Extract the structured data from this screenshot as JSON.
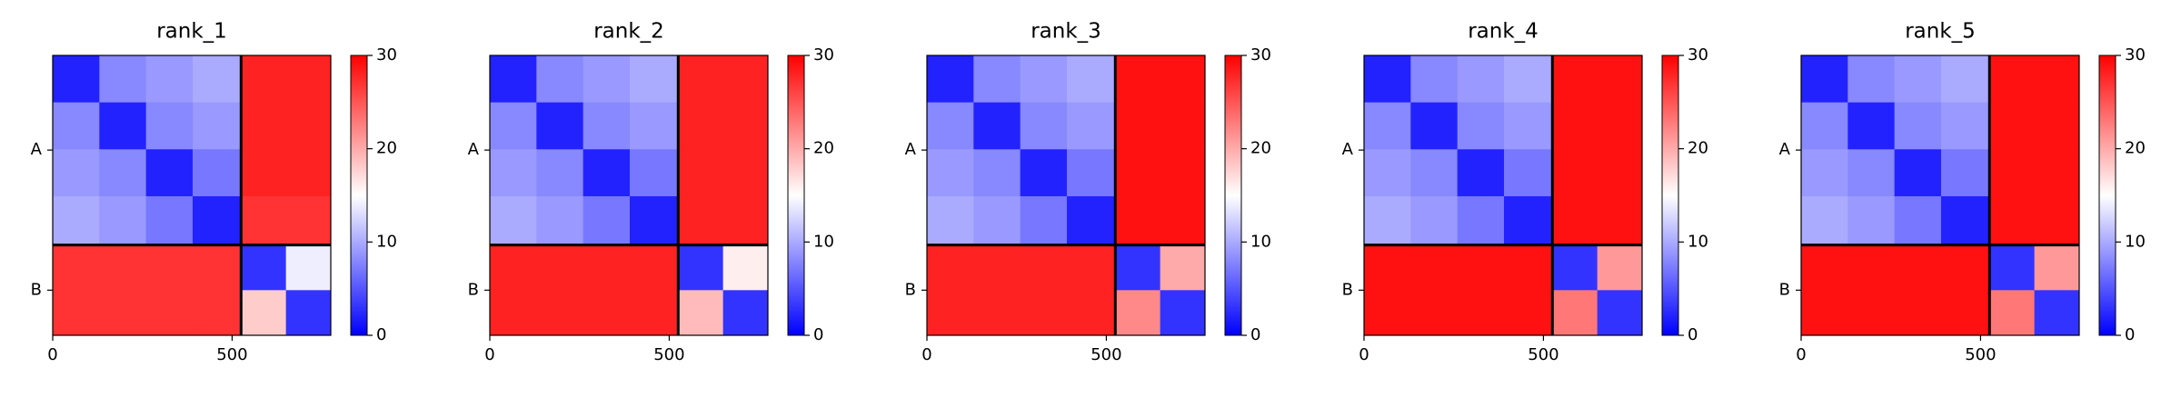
{
  "chart_data": [
    {
      "type": "heatmap",
      "title": "rank_1",
      "cmap": "bwr",
      "bins": [
        0,
        130,
        260,
        390,
        525,
        650,
        775
      ],
      "values": [
        [
          2,
          8,
          9,
          10,
          28,
          28
        ],
        [
          8,
          2,
          8,
          9,
          28,
          28
        ],
        [
          9,
          8,
          2,
          7,
          28,
          28
        ],
        [
          10,
          9,
          7,
          2,
          27,
          27
        ],
        [
          27,
          27,
          27,
          27,
          3,
          14
        ],
        [
          27,
          27,
          27,
          27,
          18,
          3
        ]
      ],
      "xlim": [
        0,
        775
      ],
      "xticks": [
        0,
        500
      ],
      "ylim": [
        0,
        775
      ],
      "yticks": [
        {
          "value": 262,
          "label": "A"
        },
        {
          "value": 650,
          "label": "B"
        }
      ],
      "chain_breaks": [
        525
      ],
      "clim": [
        0,
        30
      ],
      "cticks": [
        0,
        10,
        20,
        30
      ]
    },
    {
      "type": "heatmap",
      "title": "rank_2",
      "cmap": "bwr",
      "bins": [
        0,
        130,
        260,
        390,
        525,
        650,
        775
      ],
      "values": [
        [
          2,
          8,
          9,
          10,
          28,
          28
        ],
        [
          8,
          2,
          8,
          9,
          28,
          28
        ],
        [
          9,
          8,
          2,
          7,
          28,
          28
        ],
        [
          10,
          9,
          7,
          2,
          28,
          28
        ],
        [
          28,
          28,
          28,
          28,
          3,
          16
        ],
        [
          28,
          28,
          28,
          28,
          19,
          3
        ]
      ],
      "xlim": [
        0,
        775
      ],
      "xticks": [
        0,
        500
      ],
      "ylim": [
        0,
        775
      ],
      "yticks": [
        {
          "value": 262,
          "label": "A"
        },
        {
          "value": 650,
          "label": "B"
        }
      ],
      "chain_breaks": [
        525
      ],
      "clim": [
        0,
        30
      ],
      "cticks": [
        0,
        10,
        20,
        30
      ]
    },
    {
      "type": "heatmap",
      "title": "rank_3",
      "cmap": "bwr",
      "bins": [
        0,
        130,
        260,
        390,
        525,
        650,
        775
      ],
      "values": [
        [
          2,
          8,
          9,
          10,
          29,
          29
        ],
        [
          8,
          2,
          8,
          9,
          29,
          29
        ],
        [
          9,
          8,
          2,
          7,
          29,
          29
        ],
        [
          10,
          9,
          7,
          2,
          29,
          29
        ],
        [
          28,
          28,
          28,
          28,
          3,
          20
        ],
        [
          28,
          28,
          28,
          28,
          22,
          3
        ]
      ],
      "xlim": [
        0,
        775
      ],
      "xticks": [
        0,
        500
      ],
      "ylim": [
        0,
        775
      ],
      "yticks": [
        {
          "value": 262,
          "label": "A"
        },
        {
          "value": 650,
          "label": "B"
        }
      ],
      "chain_breaks": [
        525
      ],
      "clim": [
        0,
        30
      ],
      "cticks": [
        0,
        10,
        20,
        30
      ]
    },
    {
      "type": "heatmap",
      "title": "rank_4",
      "cmap": "bwr",
      "bins": [
        0,
        130,
        260,
        390,
        525,
        650,
        775
      ],
      "values": [
        [
          2,
          8,
          9,
          10,
          29,
          29
        ],
        [
          8,
          2,
          8,
          9,
          29,
          29
        ],
        [
          9,
          8,
          2,
          7,
          29,
          29
        ],
        [
          10,
          9,
          7,
          2,
          29,
          29
        ],
        [
          29,
          29,
          29,
          29,
          3,
          21
        ],
        [
          29,
          29,
          29,
          29,
          23,
          3
        ]
      ],
      "xlim": [
        0,
        775
      ],
      "xticks": [
        0,
        500
      ],
      "ylim": [
        0,
        775
      ],
      "yticks": [
        {
          "value": 262,
          "label": "A"
        },
        {
          "value": 650,
          "label": "B"
        }
      ],
      "chain_breaks": [
        525
      ],
      "clim": [
        0,
        30
      ],
      "cticks": [
        0,
        10,
        20,
        30
      ]
    },
    {
      "type": "heatmap",
      "title": "rank_5",
      "cmap": "bwr",
      "bins": [
        0,
        130,
        260,
        390,
        525,
        650,
        775
      ],
      "values": [
        [
          2,
          8,
          9,
          10,
          29,
          29
        ],
        [
          8,
          2,
          8,
          9,
          29,
          29
        ],
        [
          9,
          8,
          2,
          7,
          29,
          29
        ],
        [
          10,
          9,
          7,
          2,
          29,
          29
        ],
        [
          29,
          29,
          29,
          29,
          3,
          21
        ],
        [
          29,
          29,
          29,
          29,
          23,
          3
        ]
      ],
      "xlim": [
        0,
        775
      ],
      "xticks": [
        0,
        500
      ],
      "ylim": [
        0,
        775
      ],
      "yticks": [
        {
          "value": 262,
          "label": "A"
        },
        {
          "value": 650,
          "label": "B"
        }
      ],
      "chain_breaks": [
        525
      ],
      "clim": [
        0,
        30
      ],
      "cticks": [
        0,
        10,
        20,
        30
      ]
    }
  ]
}
